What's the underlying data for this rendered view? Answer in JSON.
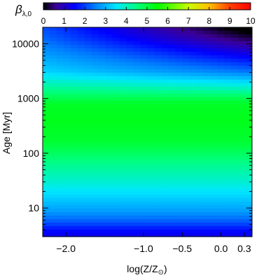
{
  "chart_data": {
    "type": "heatmap",
    "colorbar": {
      "label_main": "β",
      "label_sub": "λ,0",
      "range": [
        0,
        10
      ],
      "tick_labels": [
        "0",
        "1",
        "2",
        "3",
        "4",
        "5",
        "6",
        "7",
        "8",
        "9",
        "10"
      ],
      "colormap": "rainbow (purple-blue-cyan-green-yellow-red)",
      "stops": [
        {
          "v": 0,
          "color": "#000000"
        },
        {
          "v": 0.6,
          "color": "#3c0096"
        },
        {
          "v": 1.5,
          "color": "#0000ff"
        },
        {
          "v": 2.5,
          "color": "#0080ff"
        },
        {
          "v": 3.5,
          "color": "#00e6ff"
        },
        {
          "v": 4.5,
          "color": "#00ff80"
        },
        {
          "v": 5.5,
          "color": "#00ff00"
        },
        {
          "v": 7.0,
          "color": "#c8ff00"
        },
        {
          "v": 8.0,
          "color": "#ffbf00"
        },
        {
          "v": 9.0,
          "color": "#ff4000"
        },
        {
          "v": 10,
          "color": "#ff0000"
        }
      ]
    },
    "x_axis": {
      "label_main": "log(Z/Z",
      "label_sub": "⊙",
      "label_end": ")",
      "range": [
        -2.3,
        0.4
      ],
      "ticks": [
        -2.0,
        -1.0,
        -0.5,
        0.0,
        0.3
      ],
      "tick_labels": [
        "−2.0",
        "−1.0",
        "−0.5",
        "0.0",
        "0.3"
      ]
    },
    "y_axis": {
      "label_main": "Age",
      "label_unit": "[Myr]",
      "scale": "log",
      "range": [
        3,
        20000
      ],
      "ticks": [
        10,
        100,
        1000,
        10000
      ],
      "tick_labels": [
        "10",
        "100",
        "1000",
        "10000"
      ]
    },
    "age_profile": [
      {
        "log_age": 0.48,
        "v": 1.3
      },
      {
        "log_age": 0.6,
        "v": 1.6
      },
      {
        "log_age": 0.75,
        "v": 2.2
      },
      {
        "log_age": 0.95,
        "v": 2.8
      },
      {
        "log_age": 1.2,
        "v": 3.3
      },
      {
        "log_age": 1.5,
        "v": 3.9
      },
      {
        "log_age": 1.8,
        "v": 4.4
      },
      {
        "log_age": 2.2,
        "v": 5.1
      },
      {
        "log_age": 2.6,
        "v": 5.3
      },
      {
        "log_age": 2.9,
        "v": 5.2
      },
      {
        "log_age": 3.2,
        "v": 4.3
      },
      {
        "log_age": 3.5,
        "v": 3.3
      },
      {
        "log_age": 3.8,
        "v": 2.8
      },
      {
        "log_age": 4.1,
        "v": 2.3
      },
      {
        "log_age": 4.3,
        "v": 2.1
      }
    ],
    "high_age_metallicity_trend": {
      "log_age_start": 3.0,
      "delta_per_dex_metallicity": -0.9,
      "reference_logZ": -2.3
    }
  }
}
